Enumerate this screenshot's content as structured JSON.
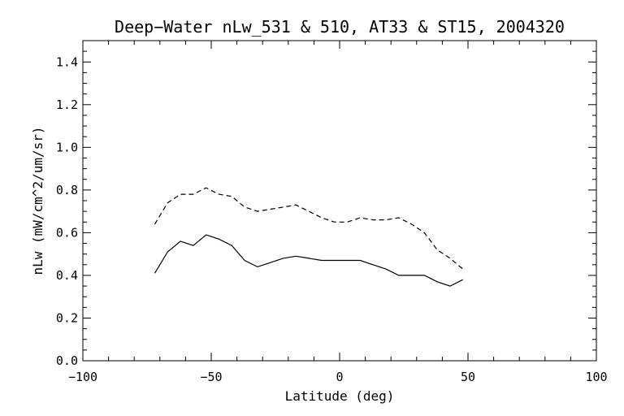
{
  "chart_data": {
    "type": "line",
    "title": "Deep−Water nLw_531 & 510, AT33 & ST15, 2004320",
    "xlabel": "Latitude (deg)",
    "ylabel": "nLw (mW/cm^2/um/sr)",
    "xlim": [
      -100,
      100
    ],
    "ylim": [
      0.0,
      1.5
    ],
    "x_ticks": [
      -100,
      -50,
      0,
      50,
      100
    ],
    "x_tick_labels": [
      "−100",
      "−50",
      "0",
      "50",
      "100"
    ],
    "y_ticks": [
      0.0,
      0.2,
      0.4,
      0.6,
      0.8,
      1.0,
      1.2,
      1.4
    ],
    "y_tick_labels": [
      "0.0",
      "0.2",
      "0.4",
      "0.6",
      "0.8",
      "1.0",
      "1.2",
      "1.4"
    ],
    "grid": false,
    "legend": false,
    "series": [
      {
        "style": "solid",
        "x": [
          -72,
          -67,
          -62,
          -57,
          -52,
          -47,
          -42,
          -37,
          -32,
          -27,
          -22,
          -17,
          -12,
          -7,
          -2,
          3,
          8,
          13,
          18,
          23,
          28,
          33,
          38,
          43,
          48
        ],
        "values": [
          0.41,
          0.51,
          0.56,
          0.54,
          0.59,
          0.57,
          0.54,
          0.47,
          0.44,
          0.46,
          0.48,
          0.49,
          0.48,
          0.47,
          0.47,
          0.47,
          0.47,
          0.45,
          0.43,
          0.4,
          0.4,
          0.4,
          0.37,
          0.35,
          0.38
        ]
      },
      {
        "style": "dashed",
        "x": [
          -72,
          -67,
          -62,
          -57,
          -52,
          -47,
          -42,
          -37,
          -32,
          -27,
          -22,
          -17,
          -12,
          -7,
          -2,
          3,
          8,
          13,
          18,
          23,
          28,
          33,
          38,
          43,
          48
        ],
        "values": [
          0.64,
          0.74,
          0.78,
          0.78,
          0.81,
          0.78,
          0.77,
          0.72,
          0.7,
          0.71,
          0.72,
          0.73,
          0.7,
          0.67,
          0.65,
          0.65,
          0.67,
          0.66,
          0.66,
          0.67,
          0.64,
          0.6,
          0.52,
          0.48,
          0.43
        ]
      }
    ]
  }
}
